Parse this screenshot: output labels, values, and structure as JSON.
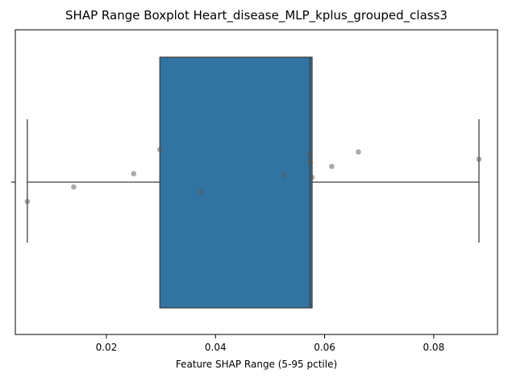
{
  "chart_data": {
    "type": "boxplot",
    "title": "SHAP Range Boxplot Heart_disease_MLP_kplus_grouped_class3",
    "xlabel": "Feature SHAP Range (5-95 pctile)",
    "ylabel": "",
    "xlim": [
      0.0033,
      0.0917
    ],
    "xticks": [
      0.02,
      0.04,
      0.06,
      0.08
    ],
    "xtick_labels": [
      "0.02",
      "0.04",
      "0.06",
      "0.08"
    ],
    "grid": false,
    "box": {
      "whisker_low": 0.0055,
      "q1": 0.0298,
      "median": 0.0573,
      "q3": 0.0577,
      "whisker_high": 0.0883,
      "color": "#3274a1",
      "edge_color": "#3f3f3f"
    },
    "points": {
      "color": "#555555",
      "x": [
        0.0055,
        0.014,
        0.025,
        0.0298,
        0.0373,
        0.0525,
        0.0572,
        0.0573,
        0.0574,
        0.0577,
        0.0613,
        0.0662,
        0.0883
      ],
      "jitter": [
        -0.16,
        -0.04,
        0.07,
        0.27,
        -0.08,
        0.06,
        0.23,
        0.18,
        0.16,
        0.04,
        0.13,
        0.25,
        0.19
      ]
    }
  }
}
